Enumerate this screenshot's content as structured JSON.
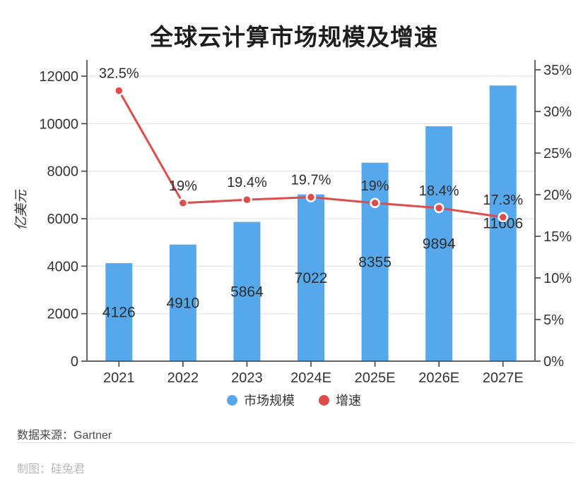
{
  "chart_data": {
    "type": "bar+line combo",
    "title": "全球云计算市场规模及增速",
    "categories": [
      "2021",
      "2022",
      "2023",
      "2024E",
      "2025E",
      "2026E",
      "2027E"
    ],
    "series": [
      {
        "name": "市场规模",
        "type": "bar",
        "axis": "left",
        "values": [
          4126,
          4910,
          5864,
          7022,
          8355,
          9894,
          11606
        ],
        "value_labels": [
          "4126",
          "4910",
          "5864",
          "7022",
          "8355",
          "9894",
          "11606"
        ],
        "color": "#56a8ec"
      },
      {
        "name": "增速",
        "type": "line",
        "axis": "right",
        "values": [
          32.5,
          19,
          19.4,
          19.7,
          19,
          18.4,
          17.3
        ],
        "value_labels": [
          "32.5%",
          "19%",
          "19.4%",
          "19.7%",
          "19%",
          "18.4%",
          "17.3%"
        ],
        "color": "#e04b4b"
      }
    ],
    "left_axis": {
      "title": "亿美元",
      "min": 0,
      "max": 12000,
      "tick_values": [
        0,
        2000,
        4000,
        6000,
        8000,
        10000,
        12000
      ],
      "tick_labels": [
        "0",
        "2000",
        "4000",
        "6000",
        "8000",
        "10000",
        "12000"
      ]
    },
    "right_axis": {
      "min": 0,
      "max": 35,
      "tick_values": [
        0,
        5,
        10,
        15,
        20,
        25,
        30,
        35
      ],
      "tick_labels": [
        "0%",
        "5%",
        "10%",
        "15%",
        "20%",
        "25%",
        "30%",
        "35%"
      ]
    },
    "grid": "horizontal gridlines at left-axis steps",
    "legend_position": "bottom-center",
    "colors": {
      "bar": "#56a8ec",
      "line": "#e04b4b",
      "axis": "#4d4d4d",
      "gridline": "#e7e7e7",
      "text_dark": "#2d2d2d"
    }
  },
  "footer": {
    "source": "数据来源：Gartner",
    "credit": "制图：硅兔君"
  }
}
